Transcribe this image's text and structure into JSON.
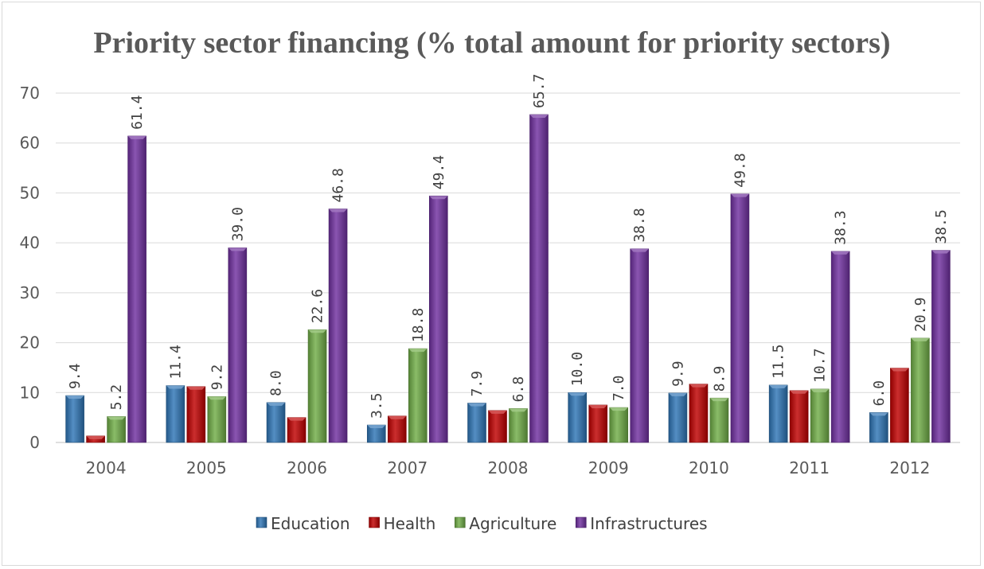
{
  "chart_data": {
    "type": "bar",
    "title": "Priority sector financing (% total amount for priority sectors)",
    "categories": [
      "2004",
      "2005",
      "2006",
      "2007",
      "2008",
      "2009",
      "2010",
      "2011",
      "2012"
    ],
    "ylim": [
      0,
      70
    ],
    "yticks": [
      0,
      10,
      20,
      30,
      40,
      50,
      60,
      70
    ],
    "grid": true,
    "legend_position": "bottom",
    "series": [
      {
        "name": "Education",
        "color": "#2e75b6",
        "values": [
          9.4,
          11.4,
          8.0,
          3.5,
          7.9,
          10.0,
          9.9,
          11.5,
          6.0
        ],
        "labels": [
          "9.4",
          "11.4",
          "8.0",
          "3.5",
          "7.9",
          "10.0",
          "9.9",
          "11.5",
          "6.0"
        ]
      },
      {
        "name": "Health",
        "color": "#c00000",
        "values": [
          1.3,
          11.2,
          5.0,
          5.3,
          6.4,
          7.5,
          11.7,
          10.4,
          14.9
        ],
        "labels": []
      },
      {
        "name": "Agriculture",
        "color": "#70ad47",
        "values": [
          5.2,
          9.2,
          22.6,
          18.8,
          6.8,
          7.0,
          8.9,
          10.7,
          20.9
        ],
        "labels": [
          "5.2",
          "9.2",
          "22.6",
          "18.8",
          "6.8",
          "7.0",
          "8.9",
          "10.7",
          "20.9"
        ]
      },
      {
        "name": "Infrastructures",
        "color": "#7030a0",
        "values": [
          61.4,
          39.0,
          46.8,
          49.4,
          65.7,
          38.8,
          49.8,
          38.3,
          38.5
        ],
        "labels": [
          "61.4",
          "39.0",
          "46.8",
          "49.4",
          "65.7",
          "38.8",
          "49.8",
          "38.3",
          "38.5"
        ]
      }
    ]
  }
}
